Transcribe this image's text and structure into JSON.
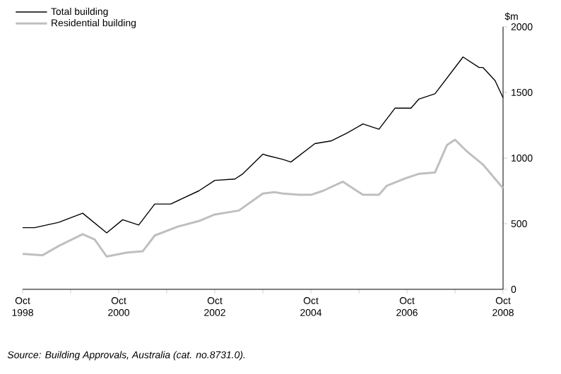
{
  "chart_data": {
    "type": "line",
    "ylabel": "$m",
    "x": [
      "1998-10",
      "1999-01",
      "1999-04",
      "1999-07",
      "2000-01",
      "2000-07",
      "2000-11",
      "2001-03",
      "2001-07",
      "2001-11",
      "2002-06",
      "2002-10",
      "2003-03",
      "2003-05",
      "2003-10",
      "2003-11",
      "2004-03",
      "2004-05",
      "2004-11",
      "2005-03",
      "2005-07",
      "2005-11",
      "2006-03",
      "2006-07",
      "2006-11",
      "2007-01",
      "2007-05",
      "2007-12",
      "2008-04",
      "2008-05",
      "2008-08",
      "2008-10"
    ],
    "series": [
      {
        "name": "Total building",
        "color": "#000000",
        "values": [
          470,
          470,
          490,
          510,
          580,
          430,
          530,
          490,
          650,
          650,
          750,
          830,
          840,
          880,
          1030,
          1020,
          990,
          970,
          1110,
          1130,
          1190,
          1260,
          1220,
          1380,
          1380,
          1450,
          1490,
          1770,
          1690,
          1690,
          1590,
          1460
        ]
      },
      {
        "name": "Residential building",
        "color": "#bfbfbf",
        "x": [
          "1998-10",
          "1999-03",
          "1999-07",
          "2000-01",
          "2000-04",
          "2000-07",
          "2000-12",
          "2001-04",
          "2001-07",
          "2002-01",
          "2002-06",
          "2002-10",
          "2003-04",
          "2003-10",
          "2004-01",
          "2004-03",
          "2004-07",
          "2004-10",
          "2005-01",
          "2005-06",
          "2005-11",
          "2006-03",
          "2006-05",
          "2006-10",
          "2007-01",
          "2007-05",
          "2007-08",
          "2007-10",
          "2008-01",
          "2008-05",
          "2008-10"
        ],
        "values": [
          270,
          260,
          330,
          420,
          380,
          250,
          280,
          290,
          410,
          480,
          520,
          570,
          600,
          730,
          740,
          730,
          720,
          720,
          750,
          820,
          720,
          720,
          790,
          850,
          880,
          890,
          1100,
          1140,
          1050,
          950,
          770
        ]
      }
    ],
    "xlim": [
      "1998-10",
      "2008-10"
    ],
    "xticks": [
      {
        "value": "1998-10",
        "label": "Oct 1998"
      },
      {
        "value": "1999-10",
        "label": null
      },
      {
        "value": "2000-10",
        "label": "Oct 2000"
      },
      {
        "value": "2001-10",
        "label": null
      },
      {
        "value": "2002-10",
        "label": "Oct 2002"
      },
      {
        "value": "2003-10",
        "label": null
      },
      {
        "value": "2004-10",
        "label": "Oct 2004"
      },
      {
        "value": "2005-10",
        "label": null
      },
      {
        "value": "2006-10",
        "label": "Oct 2006"
      },
      {
        "value": "2007-10",
        "label": null
      },
      {
        "value": "2008-10",
        "label": "Oct 2008"
      }
    ],
    "ylim": [
      0,
      2000
    ],
    "yticks": [
      0,
      500,
      1000,
      1500,
      2000
    ],
    "grid": false,
    "legend": "top left",
    "annotations": [
      "Source: Building Approvals, Australia (cat. no.8731.0)."
    ]
  }
}
